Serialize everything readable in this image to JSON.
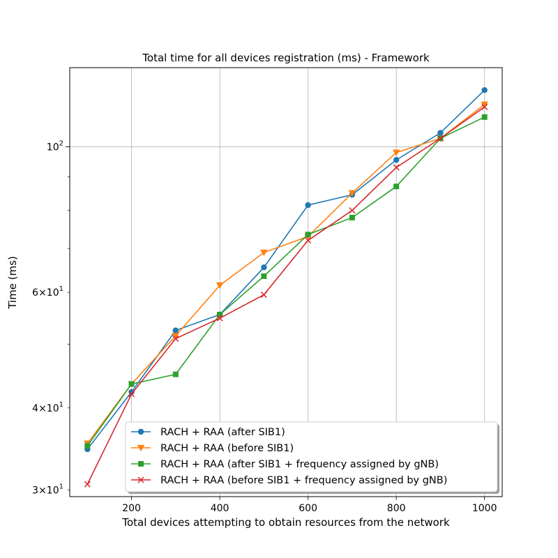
{
  "chart_data": {
    "type": "line",
    "title": "Total time for all devices registration (ms) - Framework",
    "xlabel": "Total devices attempting to obtain resources from the network",
    "ylabel": "Time (ms)",
    "x": [
      100,
      200,
      300,
      400,
      500,
      600,
      700,
      800,
      900,
      1000
    ],
    "xlim": [
      60,
      1040
    ],
    "ylim": [
      29.3,
      132
    ],
    "yscale": "log",
    "grid": true,
    "legend_position": "lower-right",
    "x_ticks": [
      {
        "value": 200,
        "label": "200"
      },
      {
        "value": 400,
        "label": "400"
      },
      {
        "value": 600,
        "label": "600"
      },
      {
        "value": 800,
        "label": "800"
      },
      {
        "value": 1000,
        "label": "1000"
      }
    ],
    "y_ticks": [
      {
        "value": 30,
        "base": "3",
        "mult": "×",
        "pow": "10",
        "exp": "1"
      },
      {
        "value": 40,
        "base": "4",
        "mult": "×",
        "pow": "10",
        "exp": "1"
      },
      {
        "value": 60,
        "base": "6",
        "mult": "×",
        "pow": "10",
        "exp": "1"
      },
      {
        "value": 100,
        "base": "",
        "mult": "",
        "pow": "10",
        "exp": "2"
      }
    ],
    "series": [
      {
        "name": "RACH + RAA (after SIB1)",
        "color": "#1f77b4",
        "marker": "circle",
        "values": [
          34.6,
          42.3,
          52.5,
          55.5,
          65.5,
          81.5,
          84.5,
          95.5,
          105,
          122
        ]
      },
      {
        "name": "RACH + RAA (before SIB1)",
        "color": "#ff7f0e",
        "marker": "triangle-down",
        "values": [
          35.3,
          43.5,
          51.5,
          61.5,
          69,
          73,
          85,
          98,
          103,
          116
        ]
      },
      {
        "name": "RACH + RAA (after SIB1 + frequency assigned by gNB)",
        "color": "#2ca02c",
        "marker": "square",
        "values": [
          35,
          43.5,
          45,
          55.5,
          63.5,
          73.5,
          78,
          87,
          103,
          111
        ]
      },
      {
        "name": "RACH + RAA (before SIB1 + frequency assigned by gNB)",
        "color": "#d62728",
        "marker": "x",
        "values": [
          30.6,
          42,
          51,
          54.8,
          59.5,
          72,
          80,
          93,
          103,
          115
        ]
      }
    ]
  }
}
